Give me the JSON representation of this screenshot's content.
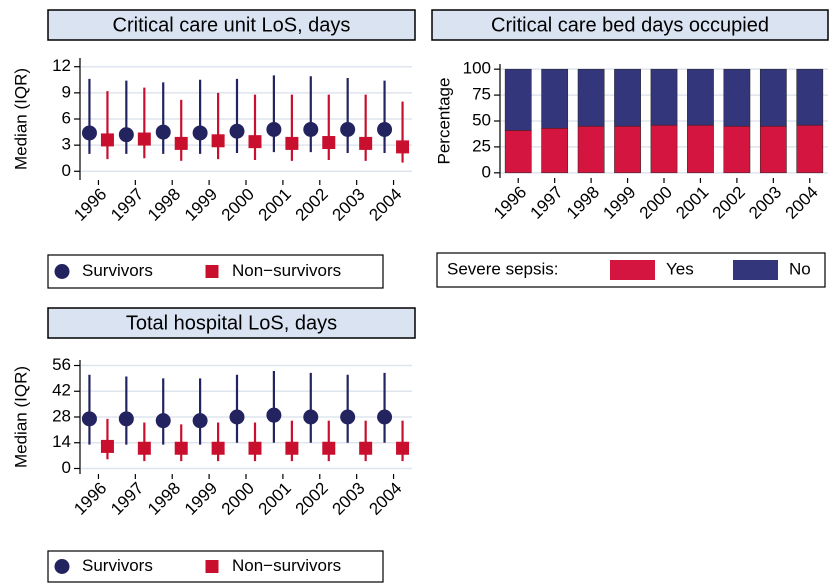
{
  "chart_data": [
    {
      "type": "errorbar",
      "title": "Critical care unit LoS, days",
      "ylabel": "Median (IQR)",
      "categories": [
        "1996",
        "1997",
        "1998",
        "1999",
        "2000",
        "2001",
        "2002",
        "2003",
        "2004"
      ],
      "ylim": [
        -1,
        13
      ],
      "yticks": [
        0,
        3,
        6,
        9,
        12
      ],
      "grid": true,
      "series": [
        {
          "name": "Survivors",
          "color": "#23235f",
          "marker": "circle",
          "values": [
            4.4,
            4.2,
            4.5,
            4.4,
            4.6,
            4.8,
            4.8,
            4.8,
            4.8
          ],
          "low": [
            2.0,
            2.0,
            2.0,
            2.0,
            2.1,
            2.2,
            2.2,
            2.1,
            2.1
          ],
          "high": [
            10.6,
            10.4,
            10.2,
            10.5,
            10.6,
            11.0,
            10.9,
            10.7,
            10.4
          ]
        },
        {
          "name": "Non−survivors",
          "color": "#c8102e",
          "marker": "square",
          "values": [
            3.6,
            3.7,
            3.2,
            3.5,
            3.4,
            3.2,
            3.3,
            3.2,
            2.8
          ],
          "low": [
            1.4,
            1.5,
            1.2,
            1.4,
            1.3,
            1.2,
            1.3,
            1.2,
            1.0
          ],
          "high": [
            9.2,
            9.6,
            8.2,
            9.0,
            8.8,
            8.8,
            8.8,
            8.8,
            8.0
          ]
        }
      ]
    },
    {
      "type": "stacked_bar",
      "title": "Critical care bed days occupied",
      "ylabel": "Percentage",
      "categories": [
        "1996",
        "1997",
        "1998",
        "1999",
        "2000",
        "2001",
        "2002",
        "2003",
        "2004"
      ],
      "ylim": [
        -5,
        105
      ],
      "yticks": [
        0,
        25,
        50,
        75,
        100
      ],
      "grid": true,
      "legend_title": "Severe sepsis:",
      "series": [
        {
          "name": "Yes",
          "color": "#d4153f",
          "values": [
            41,
            43,
            45,
            45,
            46,
            46,
            45,
            45,
            46
          ]
        },
        {
          "name": "No",
          "color": "#33367a",
          "values": [
            59,
            57,
            55,
            55,
            54,
            54,
            55,
            55,
            54
          ]
        }
      ]
    },
    {
      "type": "errorbar",
      "title": "Total hospital LoS, days",
      "ylabel": "Median (IQR)",
      "categories": [
        "1996",
        "1997",
        "1998",
        "1999",
        "2000",
        "2001",
        "2002",
        "2003",
        "2004"
      ],
      "ylim": [
        -3,
        59
      ],
      "yticks": [
        0,
        14,
        28,
        42,
        56
      ],
      "grid": true,
      "series": [
        {
          "name": "Survivors",
          "color": "#23235f",
          "marker": "circle",
          "values": [
            27,
            27,
            26,
            26,
            28,
            29,
            28,
            28,
            28
          ],
          "low": [
            13,
            13,
            13,
            13,
            14,
            14,
            14,
            14,
            14
          ],
          "high": [
            51,
            50,
            49,
            49,
            51,
            53,
            52,
            51,
            52
          ]
        },
        {
          "name": "Non−survivors",
          "color": "#c8102e",
          "marker": "square",
          "values": [
            12,
            11,
            11,
            11,
            11,
            11,
            11,
            11,
            11
          ],
          "low": [
            5,
            4,
            4,
            4,
            4,
            4,
            4,
            4,
            4
          ],
          "high": [
            27,
            25,
            24,
            25,
            25,
            26,
            26,
            26,
            26
          ]
        }
      ]
    }
  ]
}
